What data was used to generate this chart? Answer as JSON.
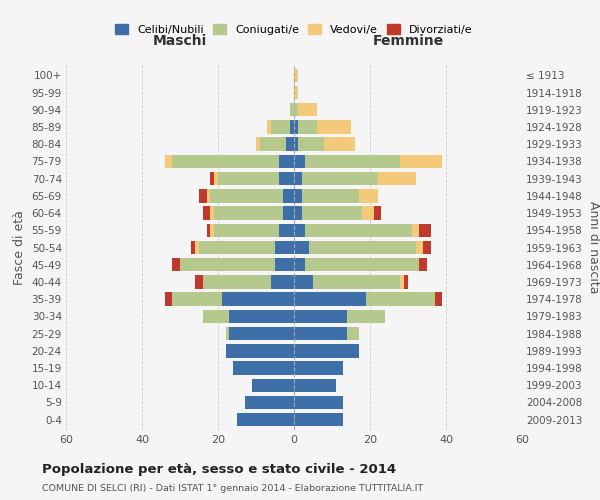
{
  "age_groups": [
    "0-4",
    "5-9",
    "10-14",
    "15-19",
    "20-24",
    "25-29",
    "30-34",
    "35-39",
    "40-44",
    "45-49",
    "50-54",
    "55-59",
    "60-64",
    "65-69",
    "70-74",
    "75-79",
    "80-84",
    "85-89",
    "90-94",
    "95-99",
    "100+"
  ],
  "birth_years": [
    "2009-2013",
    "2004-2008",
    "1999-2003",
    "1994-1998",
    "1989-1993",
    "1984-1988",
    "1979-1983",
    "1974-1978",
    "1969-1973",
    "1964-1968",
    "1959-1963",
    "1954-1958",
    "1949-1953",
    "1944-1948",
    "1939-1943",
    "1934-1938",
    "1929-1933",
    "1924-1928",
    "1919-1923",
    "1914-1918",
    "≤ 1913"
  ],
  "colors": {
    "celibi": "#3e6fa8",
    "coniugati": "#b5c98e",
    "vedovi": "#f5c97a",
    "divorziati": "#c0392b"
  },
  "maschi": {
    "celibi": [
      15,
      13,
      11,
      16,
      18,
      17,
      17,
      19,
      6,
      5,
      5,
      4,
      3,
      3,
      4,
      4,
      2,
      1,
      0,
      0,
      0
    ],
    "coniugati": [
      0,
      0,
      0,
      0,
      0,
      1,
      7,
      13,
      18,
      25,
      20,
      17,
      18,
      19,
      16,
      28,
      7,
      5,
      1,
      0,
      0
    ],
    "vedovi": [
      0,
      0,
      0,
      0,
      0,
      0,
      0,
      0,
      0,
      0,
      1,
      1,
      1,
      1,
      1,
      2,
      1,
      1,
      0,
      0,
      0
    ],
    "divorziati": [
      0,
      0,
      0,
      0,
      0,
      0,
      0,
      2,
      2,
      2,
      1,
      1,
      2,
      2,
      1,
      0,
      0,
      0,
      0,
      0,
      0
    ]
  },
  "femmine": {
    "celibi": [
      13,
      13,
      11,
      13,
      17,
      14,
      14,
      19,
      5,
      3,
      4,
      3,
      2,
      2,
      2,
      3,
      1,
      1,
      0,
      0,
      0
    ],
    "coniugati": [
      0,
      0,
      0,
      0,
      0,
      3,
      10,
      18,
      23,
      30,
      28,
      28,
      16,
      15,
      20,
      25,
      7,
      5,
      1,
      0,
      0
    ],
    "vedovi": [
      0,
      0,
      0,
      0,
      0,
      0,
      0,
      0,
      1,
      0,
      2,
      2,
      3,
      5,
      10,
      11,
      8,
      9,
      5,
      1,
      1
    ],
    "divorziati": [
      0,
      0,
      0,
      0,
      0,
      0,
      0,
      2,
      1,
      2,
      2,
      3,
      2,
      0,
      0,
      0,
      0,
      0,
      0,
      0,
      0
    ]
  },
  "title": "Popolazione per età, sesso e stato civile - 2014",
  "subtitle": "COMUNE DI SELCI (RI) - Dati ISTAT 1° gennaio 2014 - Elaborazione TUTTITALIA.IT",
  "xlabel_left": "Maschi",
  "xlabel_right": "Femmine",
  "ylabel_left": "Fasce di età",
  "ylabel_right": "Anni di nascita",
  "xlim": 60,
  "legend_labels": [
    "Celibi/Nubili",
    "Coniugati/e",
    "Vedovi/e",
    "Divorziati/e"
  ],
  "background_color": "#f5f5f5",
  "grid_color": "#cccccc"
}
